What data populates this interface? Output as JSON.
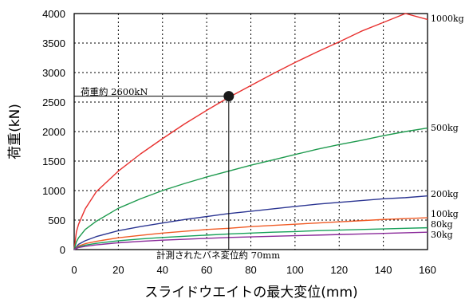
{
  "chart_data": {
    "type": "line",
    "xlabel": "スライドウエイトの最大変位(mm)",
    "ylabel": "荷重(kN)",
    "xlim": [
      0,
      160
    ],
    "ylim": [
      0,
      4000
    ],
    "xticks": [
      "0",
      "20",
      "40",
      "60",
      "80",
      "100",
      "120",
      "140",
      "160"
    ],
    "yticks": [
      "0",
      "500",
      "1000",
      "1500",
      "2000",
      "2500",
      "3000",
      "3500",
      "4000"
    ],
    "grid": true,
    "series": [
      {
        "name": "1000kg",
        "color": "#e8312f",
        "x": [
          0,
          1,
          2,
          5,
          10,
          20,
          30,
          40,
          50,
          60,
          70,
          80,
          90,
          100,
          110,
          120,
          130,
          140,
          150,
          160
        ],
        "y": [
          0,
          300,
          430,
          690,
          980,
          1330,
          1620,
          1880,
          2130,
          2360,
          2580,
          2780,
          2980,
          3170,
          3350,
          3520,
          3700,
          3850,
          4000,
          3900
        ]
      },
      {
        "name": "500kg",
        "color": "#1e9a4e",
        "x": [
          0,
          1,
          2,
          5,
          10,
          20,
          30,
          40,
          50,
          60,
          70,
          80,
          90,
          100,
          110,
          120,
          130,
          140,
          150,
          160
        ],
        "y": [
          0,
          130,
          200,
          340,
          480,
          700,
          860,
          1000,
          1120,
          1230,
          1330,
          1430,
          1520,
          1610,
          1700,
          1780,
          1850,
          1930,
          2000,
          2060
        ]
      },
      {
        "name": "200kg",
        "color": "#2b3592",
        "x": [
          0,
          2,
          5,
          10,
          20,
          30,
          40,
          50,
          60,
          70,
          80,
          90,
          100,
          110,
          120,
          130,
          140,
          150,
          160
        ],
        "y": [
          0,
          90,
          150,
          220,
          320,
          390,
          450,
          510,
          560,
          610,
          650,
          690,
          730,
          770,
          800,
          830,
          860,
          880,
          910
        ]
      },
      {
        "name": "100kg",
        "color": "#f05a24",
        "x": [
          0,
          2,
          5,
          10,
          20,
          30,
          40,
          50,
          60,
          70,
          80,
          90,
          100,
          110,
          120,
          130,
          140,
          150,
          160
        ],
        "y": [
          0,
          60,
          100,
          140,
          200,
          240,
          280,
          310,
          340,
          360,
          390,
          410,
          430,
          450,
          470,
          490,
          510,
          525,
          540
        ]
      },
      {
        "name": "80kg",
        "color": "#17a05a",
        "x": [
          0,
          2,
          5,
          10,
          20,
          30,
          40,
          50,
          60,
          70,
          80,
          90,
          100,
          110,
          120,
          130,
          140,
          150,
          160
        ],
        "y": [
          0,
          45,
          75,
          105,
          150,
          180,
          205,
          225,
          245,
          265,
          280,
          295,
          305,
          320,
          330,
          340,
          350,
          360,
          370
        ]
      },
      {
        "name": "30kg",
        "color": "#8a2a9a",
        "x": [
          0,
          2,
          5,
          10,
          20,
          30,
          40,
          50,
          60,
          70,
          80,
          90,
          100,
          110,
          120,
          130,
          140,
          150,
          160
        ],
        "y": [
          0,
          35,
          55,
          80,
          115,
          140,
          160,
          175,
          190,
          205,
          215,
          225,
          235,
          245,
          255,
          265,
          275,
          285,
          295
        ]
      }
    ],
    "highlight_point": {
      "x": 70,
      "y": 2600
    },
    "annotations": {
      "load": "荷重約 2600kN",
      "displacement": "計測されたバネ変位約 70mm"
    }
  }
}
